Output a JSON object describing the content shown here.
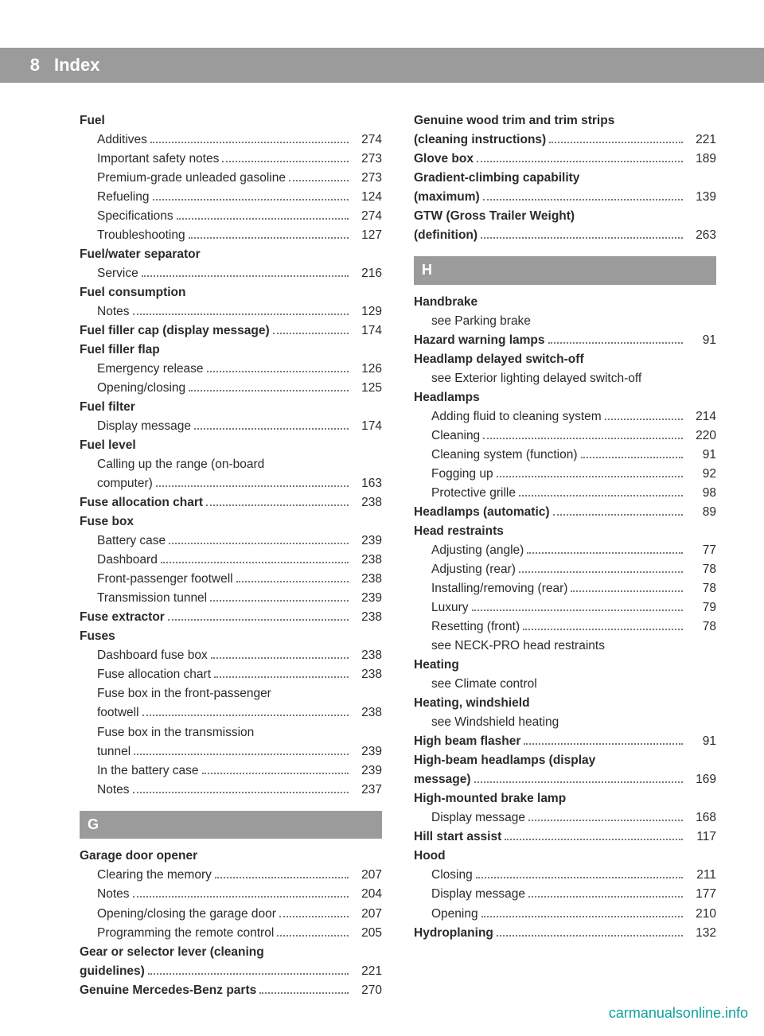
{
  "pageNumber": "8",
  "pageTitle": "Index",
  "footer": "carmanualsonline.info",
  "colors": {
    "barBg": "#9b9b9b",
    "barText": "#ffffff",
    "bodyText": "#2b2b2b",
    "leaderColor": "#777777",
    "footerColor": "#10a0a0",
    "pageBg": "#ffffff"
  },
  "leftColumn": [
    {
      "type": "entry",
      "bold": true,
      "label": "Fuel"
    },
    {
      "type": "entry",
      "sub": true,
      "label": "Additives",
      "page": "274"
    },
    {
      "type": "entry",
      "sub": true,
      "label": "Important safety notes",
      "page": "273"
    },
    {
      "type": "entry",
      "sub": true,
      "label": "Premium-grade unleaded gasoline",
      "page": "273",
      "tightLeaders": true
    },
    {
      "type": "entry",
      "sub": true,
      "label": "Refueling",
      "page": "124"
    },
    {
      "type": "entry",
      "sub": true,
      "label": "Specifications",
      "page": "274"
    },
    {
      "type": "entry",
      "sub": true,
      "label": "Troubleshooting",
      "page": "127"
    },
    {
      "type": "entry",
      "bold": true,
      "label": "Fuel/water separator"
    },
    {
      "type": "entry",
      "sub": true,
      "label": "Service",
      "page": "216"
    },
    {
      "type": "entry",
      "bold": true,
      "label": "Fuel consumption"
    },
    {
      "type": "entry",
      "sub": true,
      "label": "Notes",
      "page": "129"
    },
    {
      "type": "entry",
      "bold": true,
      "label": "Fuel filler cap (display message)",
      "page": "174"
    },
    {
      "type": "entry",
      "bold": true,
      "label": "Fuel filler flap"
    },
    {
      "type": "entry",
      "sub": true,
      "label": "Emergency release",
      "page": "126"
    },
    {
      "type": "entry",
      "sub": true,
      "label": "Opening/closing",
      "page": "125"
    },
    {
      "type": "entry",
      "bold": true,
      "label": "Fuel filter"
    },
    {
      "type": "entry",
      "sub": true,
      "label": "Display message",
      "page": "174"
    },
    {
      "type": "entry",
      "bold": true,
      "label": "Fuel level"
    },
    {
      "type": "entry",
      "sub": true,
      "label": "Calling up the range (on-board computer)",
      "page": "163",
      "wrap": true
    },
    {
      "type": "entry",
      "bold": true,
      "label": "Fuse allocation chart",
      "page": "238"
    },
    {
      "type": "entry",
      "bold": true,
      "label": "Fuse box"
    },
    {
      "type": "entry",
      "sub": true,
      "label": "Battery case",
      "page": "239"
    },
    {
      "type": "entry",
      "sub": true,
      "label": "Dashboard",
      "page": "238"
    },
    {
      "type": "entry",
      "sub": true,
      "label": "Front-passenger footwell",
      "page": "238"
    },
    {
      "type": "entry",
      "sub": true,
      "label": "Transmission tunnel",
      "page": "239"
    },
    {
      "type": "entry",
      "bold": true,
      "label": "Fuse extractor",
      "page": "238"
    },
    {
      "type": "entry",
      "bold": true,
      "label": "Fuses"
    },
    {
      "type": "entry",
      "sub": true,
      "label": "Dashboard fuse box",
      "page": "238"
    },
    {
      "type": "entry",
      "sub": true,
      "label": "Fuse allocation chart",
      "page": "238"
    },
    {
      "type": "entry",
      "sub": true,
      "label": "Fuse box in the front-passenger footwell",
      "page": "238",
      "wrap": true
    },
    {
      "type": "entry",
      "sub": true,
      "label": "Fuse box in the transmission tunnel",
      "page": "239",
      "wrap": true
    },
    {
      "type": "entry",
      "sub": true,
      "label": "In the battery case",
      "page": "239"
    },
    {
      "type": "entry",
      "sub": true,
      "label": "Notes",
      "page": "237"
    },
    {
      "type": "section",
      "letter": "G"
    },
    {
      "type": "entry",
      "bold": true,
      "label": "Garage door opener"
    },
    {
      "type": "entry",
      "sub": true,
      "label": "Clearing the memory",
      "page": "207"
    },
    {
      "type": "entry",
      "sub": true,
      "label": "Notes",
      "page": "204"
    },
    {
      "type": "entry",
      "sub": true,
      "label": "Opening/closing the garage door",
      "page": "207",
      "tightLeaders": true
    },
    {
      "type": "entry",
      "sub": true,
      "label": "Programming the remote control",
      "page": "205",
      "tightLeaders": true
    },
    {
      "type": "entry",
      "bold": true,
      "label": "Gear or selector lever (cleaning guidelines)",
      "page": "221",
      "wrap": true
    },
    {
      "type": "entry",
      "bold": true,
      "label": "Genuine Mercedes-Benz parts",
      "page": "270"
    }
  ],
  "rightColumn": [
    {
      "type": "entry",
      "bold": true,
      "label": "Genuine wood trim and trim strips (cleaning instructions)",
      "page": "221",
      "wrap": true
    },
    {
      "type": "entry",
      "bold": true,
      "label": "Glove box",
      "page": "189"
    },
    {
      "type": "entry",
      "bold": true,
      "label": "Gradient-climbing capability (maximum)",
      "page": "139",
      "wrap": true
    },
    {
      "type": "entry",
      "bold": true,
      "label": "GTW (Gross Trailer Weight) (definition)",
      "page": "263",
      "wrap": true
    },
    {
      "type": "section",
      "letter": "H"
    },
    {
      "type": "entry",
      "bold": true,
      "label": "Handbrake"
    },
    {
      "type": "entry",
      "sub": true,
      "label": "see Parking brake"
    },
    {
      "type": "entry",
      "bold": true,
      "label": "Hazard warning lamps",
      "page": "91"
    },
    {
      "type": "entry",
      "bold": true,
      "label": "Headlamp delayed switch-off"
    },
    {
      "type": "entry",
      "sub": true,
      "label": "see Exterior lighting delayed switch-off"
    },
    {
      "type": "entry",
      "bold": true,
      "label": "Headlamps"
    },
    {
      "type": "entry",
      "sub": true,
      "label": "Adding fluid to cleaning system",
      "page": "214"
    },
    {
      "type": "entry",
      "sub": true,
      "label": "Cleaning",
      "page": "220"
    },
    {
      "type": "entry",
      "sub": true,
      "label": "Cleaning system (function)",
      "page": "91"
    },
    {
      "type": "entry",
      "sub": true,
      "label": "Fogging up",
      "page": "92"
    },
    {
      "type": "entry",
      "sub": true,
      "label": "Protective grille",
      "page": "98"
    },
    {
      "type": "entry",
      "bold": true,
      "label": "Headlamps (automatic)",
      "page": "89"
    },
    {
      "type": "entry",
      "bold": true,
      "label": "Head restraints"
    },
    {
      "type": "entry",
      "sub": true,
      "label": "Adjusting (angle)",
      "page": "77"
    },
    {
      "type": "entry",
      "sub": true,
      "label": "Adjusting (rear)",
      "page": "78"
    },
    {
      "type": "entry",
      "sub": true,
      "label": "Installing/removing (rear)",
      "page": "78"
    },
    {
      "type": "entry",
      "sub": true,
      "label": "Luxury",
      "page": "79"
    },
    {
      "type": "entry",
      "sub": true,
      "label": "Resetting (front)",
      "page": "78"
    },
    {
      "type": "entry",
      "sub": true,
      "label": "see NECK-PRO head restraints"
    },
    {
      "type": "entry",
      "bold": true,
      "label": "Heating"
    },
    {
      "type": "entry",
      "sub": true,
      "label": "see Climate control"
    },
    {
      "type": "entry",
      "bold": true,
      "label": "Heating, windshield"
    },
    {
      "type": "entry",
      "sub": true,
      "label": "see Windshield heating"
    },
    {
      "type": "entry",
      "bold": true,
      "label": "High beam flasher",
      "page": "91"
    },
    {
      "type": "entry",
      "bold": true,
      "label": "High-beam headlamps (display message)",
      "page": "169",
      "wrap": true
    },
    {
      "type": "entry",
      "bold": true,
      "label": "High-mounted brake lamp"
    },
    {
      "type": "entry",
      "sub": true,
      "label": "Display message",
      "page": "168"
    },
    {
      "type": "entry",
      "bold": true,
      "label": "Hill start assist",
      "page": "117"
    },
    {
      "type": "entry",
      "bold": true,
      "label": "Hood"
    },
    {
      "type": "entry",
      "sub": true,
      "label": "Closing",
      "page": "211"
    },
    {
      "type": "entry",
      "sub": true,
      "label": "Display message",
      "page": "177"
    },
    {
      "type": "entry",
      "sub": true,
      "label": "Opening",
      "page": "210"
    },
    {
      "type": "entry",
      "bold": true,
      "label": "Hydroplaning",
      "page": "132"
    }
  ]
}
